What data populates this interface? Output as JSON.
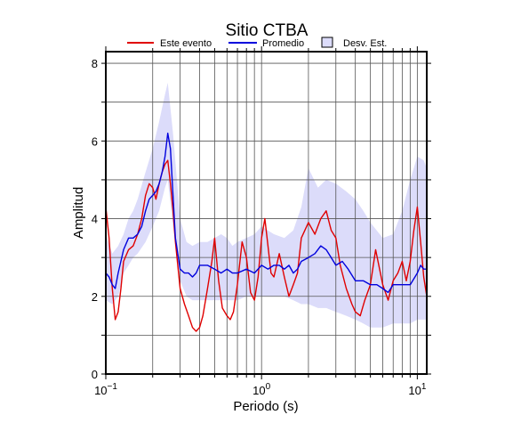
{
  "chart_data": {
    "type": "line",
    "title": "Sitio CTBA",
    "xlabel": "Periodo (s)",
    "ylabel": "Amplitud",
    "xscale": "log",
    "xlim": [
      0.1,
      11.5
    ],
    "ylim": [
      0,
      8.3
    ],
    "grid": true,
    "legend_position": "top",
    "x_ticks": [
      {
        "value": 0.1,
        "base": "10",
        "exp": "−1"
      },
      {
        "value": 1,
        "base": "10",
        "exp": "0"
      },
      {
        "value": 10,
        "base": "10",
        "exp": "1"
      }
    ],
    "y_ticks": [
      0,
      2,
      4,
      6,
      8
    ],
    "band": {
      "name": "Desv. Est.",
      "color": "#dcdcfa",
      "x": [
        0.1,
        0.11,
        0.12,
        0.13,
        0.14,
        0.15,
        0.16,
        0.18,
        0.2,
        0.22,
        0.24,
        0.25,
        0.27,
        0.3,
        0.33,
        0.36,
        0.4,
        0.45,
        0.5,
        0.55,
        0.6,
        0.65,
        0.7,
        0.8,
        0.9,
        1.0,
        1.2,
        1.4,
        1.6,
        1.8,
        2.0,
        2.3,
        2.6,
        3.0,
        3.5,
        4.0,
        4.5,
        5.0,
        6.0,
        7.0,
        8.0,
        9.0,
        10.0,
        11.0,
        11.5
      ],
      "upper": [
        3.6,
        3.1,
        3.3,
        3.6,
        4.0,
        4.2,
        4.5,
        5.2,
        5.8,
        6.5,
        7.2,
        7.5,
        6.2,
        4.0,
        3.4,
        3.3,
        3.4,
        3.4,
        3.5,
        3.6,
        3.5,
        3.3,
        3.4,
        3.5,
        3.6,
        3.8,
        3.6,
        3.5,
        3.7,
        4.3,
        5.3,
        4.8,
        5.0,
        4.9,
        4.7,
        4.5,
        4.2,
        3.9,
        3.5,
        3.6,
        4.2,
        5.0,
        5.6,
        5.5,
        5.3
      ],
      "lower": [
        1.9,
        1.8,
        2.0,
        2.6,
        2.8,
        3.0,
        3.1,
        3.4,
        3.8,
        4.2,
        4.8,
        5.0,
        3.8,
        2.4,
        2.0,
        1.9,
        1.9,
        1.9,
        1.9,
        1.9,
        1.9,
        1.9,
        1.9,
        2.0,
        2.0,
        2.0,
        2.0,
        2.0,
        1.9,
        1.8,
        1.8,
        1.7,
        1.7,
        1.6,
        1.5,
        1.4,
        1.3,
        1.2,
        1.2,
        1.3,
        1.3,
        1.3,
        1.4,
        1.4,
        1.4
      ]
    },
    "series": [
      {
        "name": "Este evento",
        "color": "#e00000",
        "x": [
          0.1,
          0.105,
          0.11,
          0.115,
          0.12,
          0.125,
          0.13,
          0.14,
          0.15,
          0.16,
          0.17,
          0.18,
          0.19,
          0.2,
          0.21,
          0.22,
          0.23,
          0.24,
          0.25,
          0.26,
          0.27,
          0.28,
          0.3,
          0.32,
          0.34,
          0.36,
          0.38,
          0.4,
          0.42,
          0.45,
          0.48,
          0.5,
          0.53,
          0.56,
          0.6,
          0.63,
          0.66,
          0.7,
          0.75,
          0.8,
          0.85,
          0.9,
          0.95,
          1.0,
          1.05,
          1.1,
          1.15,
          1.2,
          1.3,
          1.4,
          1.5,
          1.6,
          1.7,
          1.8,
          2.0,
          2.2,
          2.4,
          2.6,
          2.8,
          3.0,
          3.2,
          3.5,
          3.8,
          4.0,
          4.3,
          4.6,
          5.0,
          5.4,
          6.0,
          6.5,
          7.0,
          7.5,
          8.0,
          8.5,
          9.0,
          9.5,
          10.0,
          10.5,
          11.0,
          11.5
        ],
        "values": [
          4.3,
          3.5,
          2.2,
          1.4,
          1.6,
          2.2,
          2.9,
          3.2,
          3.3,
          3.6,
          4.0,
          4.6,
          4.9,
          4.8,
          4.5,
          4.9,
          5.2,
          5.4,
          5.5,
          4.9,
          4.2,
          3.4,
          2.2,
          1.8,
          1.5,
          1.2,
          1.1,
          1.2,
          1.5,
          2.2,
          2.9,
          3.5,
          2.4,
          1.7,
          1.5,
          1.4,
          1.6,
          2.3,
          3.4,
          3.0,
          2.1,
          1.9,
          2.5,
          3.5,
          4.0,
          3.3,
          2.6,
          2.5,
          3.1,
          2.5,
          2.0,
          2.3,
          2.6,
          3.5,
          3.9,
          3.6,
          4.0,
          4.2,
          3.7,
          3.5,
          2.8,
          2.2,
          1.8,
          1.6,
          1.5,
          1.9,
          2.3,
          3.2,
          2.3,
          1.9,
          2.4,
          2.6,
          2.9,
          2.4,
          2.9,
          3.7,
          4.3,
          3.4,
          2.5,
          2.0
        ]
      },
      {
        "name": "Promedio",
        "color": "#0000dd",
        "x": [
          0.1,
          0.105,
          0.11,
          0.115,
          0.12,
          0.13,
          0.14,
          0.15,
          0.16,
          0.17,
          0.18,
          0.19,
          0.2,
          0.21,
          0.22,
          0.23,
          0.24,
          0.25,
          0.26,
          0.27,
          0.28,
          0.3,
          0.32,
          0.34,
          0.36,
          0.38,
          0.4,
          0.45,
          0.5,
          0.55,
          0.6,
          0.65,
          0.7,
          0.8,
          0.9,
          1.0,
          1.1,
          1.2,
          1.3,
          1.4,
          1.5,
          1.6,
          1.7,
          1.8,
          2.0,
          2.2,
          2.4,
          2.6,
          2.8,
          3.0,
          3.3,
          3.6,
          4.0,
          4.5,
          5.0,
          5.5,
          6.0,
          6.5,
          7.0,
          8.0,
          9.0,
          10.0,
          10.5,
          11.0,
          11.5
        ],
        "values": [
          2.6,
          2.5,
          2.3,
          2.2,
          2.6,
          3.2,
          3.5,
          3.5,
          3.6,
          3.8,
          4.2,
          4.5,
          4.6,
          4.7,
          4.9,
          5.2,
          5.6,
          6.2,
          5.8,
          4.6,
          3.5,
          2.7,
          2.6,
          2.6,
          2.5,
          2.6,
          2.8,
          2.8,
          2.7,
          2.6,
          2.7,
          2.6,
          2.6,
          2.7,
          2.6,
          2.8,
          2.7,
          2.8,
          2.8,
          2.7,
          2.8,
          2.6,
          2.7,
          2.9,
          3.0,
          3.1,
          3.3,
          3.2,
          3.0,
          2.8,
          2.9,
          2.7,
          2.4,
          2.4,
          2.3,
          2.3,
          2.2,
          2.1,
          2.3,
          2.3,
          2.3,
          2.6,
          2.8,
          2.7,
          2.7
        ]
      }
    ]
  }
}
